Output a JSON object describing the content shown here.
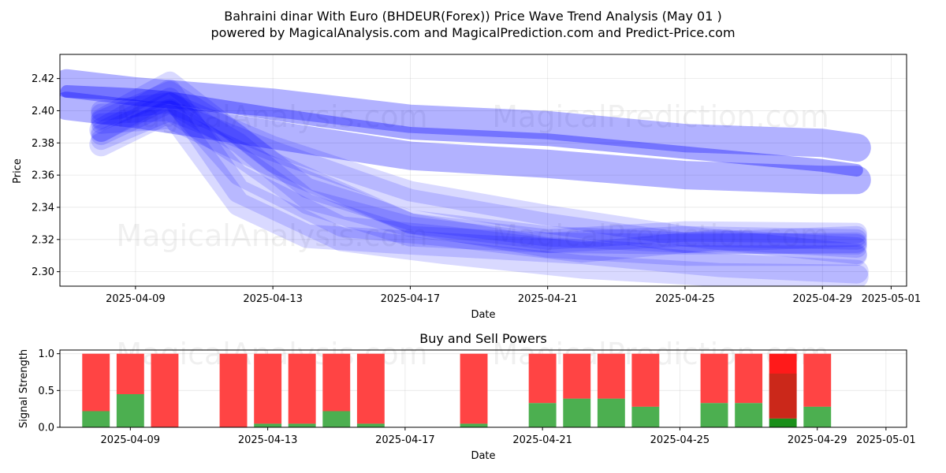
{
  "title_line1": "Bahraini dinar With Euro (BHDEUR(Forex)) Price Wave Trend Analysis (May 01 )",
  "title_line2": "powered by MagicalAnalysis.com and MagicalPrediction.com and Predict-Price.com",
  "watermarks": [
    "MagicalAnalysis.com",
    "MagicalPrediction.com"
  ],
  "colors": {
    "wave": "#0000ff",
    "buy": "#4caf50",
    "sell": "#ff4444",
    "buy_strong": "#1a8f1a",
    "sell_strong": "#ff1a1a"
  },
  "chart_data": [
    {
      "type": "area",
      "xlabel": "Date",
      "ylabel": "Price",
      "xlim": [
        "2025-04-07",
        "2025-05-01"
      ],
      "ylim": [
        2.291,
        2.435
      ],
      "y_ticks": [
        2.3,
        2.32,
        2.34,
        2.36,
        2.38,
        2.4,
        2.42
      ],
      "x_ticks": [
        "2025-04-09",
        "2025-04-13",
        "2025-04-17",
        "2025-04-21",
        "2025-04-25",
        "2025-04-29",
        "2025-05-01"
      ],
      "grid": true,
      "series": [
        {
          "x": [
            "2025-04-07",
            "2025-04-09",
            "2025-04-13",
            "2025-04-17",
            "2025-04-21",
            "2025-04-25",
            "2025-04-29",
            "2025-04-30"
          ],
          "values": [
            2.417,
            2.412,
            2.405,
            2.395,
            2.391,
            2.383,
            2.38,
            2.377
          ],
          "opacity": 0.3,
          "width": 36
        },
        {
          "x": [
            "2025-04-07",
            "2025-04-09",
            "2025-04-13",
            "2025-04-17",
            "2025-04-21",
            "2025-04-25",
            "2025-04-29",
            "2025-04-30"
          ],
          "values": [
            2.403,
            2.398,
            2.385,
            2.372,
            2.367,
            2.36,
            2.357,
            2.357
          ],
          "opacity": 0.3,
          "width": 36
        },
        {
          "x": [
            "2025-04-07",
            "2025-04-09",
            "2025-04-10",
            "2025-04-13",
            "2025-04-17",
            "2025-04-21",
            "2025-04-25",
            "2025-04-29",
            "2025-04-30"
          ],
          "values": [
            2.412,
            2.41,
            2.408,
            2.398,
            2.386,
            2.382,
            2.374,
            2.366,
            2.363
          ],
          "opacity": 0.35,
          "width": 16
        },
        {
          "x": [
            "2025-04-08",
            "2025-04-10",
            "2025-04-12",
            "2025-04-14",
            "2025-04-17",
            "2025-04-21",
            "2025-04-25",
            "2025-04-30"
          ],
          "values": [
            2.385,
            2.405,
            2.38,
            2.345,
            2.328,
            2.318,
            2.317,
            2.318
          ],
          "opacity": 0.15,
          "width": 26
        },
        {
          "x": [
            "2025-04-08",
            "2025-04-10",
            "2025-04-12",
            "2025-04-14",
            "2025-04-17",
            "2025-04-21",
            "2025-04-25",
            "2025-04-30"
          ],
          "values": [
            2.398,
            2.4,
            2.372,
            2.342,
            2.322,
            2.318,
            2.322,
            2.32
          ],
          "opacity": 0.15,
          "width": 26
        },
        {
          "x": [
            "2025-04-08",
            "2025-04-10",
            "2025-04-12",
            "2025-04-14",
            "2025-04-17",
            "2025-04-21",
            "2025-04-25",
            "2025-04-30"
          ],
          "values": [
            2.394,
            2.412,
            2.385,
            2.352,
            2.332,
            2.322,
            2.318,
            2.317
          ],
          "opacity": 0.15,
          "width": 26
        },
        {
          "x": [
            "2025-04-08",
            "2025-04-10",
            "2025-04-12",
            "2025-04-15",
            "2025-04-18",
            "2025-04-22",
            "2025-04-26",
            "2025-04-30"
          ],
          "values": [
            2.387,
            2.408,
            2.36,
            2.328,
            2.322,
            2.312,
            2.32,
            2.315
          ],
          "opacity": 0.15,
          "width": 26
        },
        {
          "x": [
            "2025-04-08",
            "2025-04-10",
            "2025-04-13",
            "2025-04-17",
            "2025-04-21",
            "2025-04-25",
            "2025-04-30"
          ],
          "values": [
            2.382,
            2.4,
            2.375,
            2.345,
            2.33,
            2.318,
            2.322
          ],
          "opacity": 0.15,
          "width": 26
        },
        {
          "x": [
            "2025-04-08",
            "2025-04-10",
            "2025-04-13",
            "2025-04-17",
            "2025-04-21",
            "2025-04-25",
            "2025-04-30"
          ],
          "values": [
            2.392,
            2.395,
            2.365,
            2.33,
            2.32,
            2.325,
            2.324
          ],
          "opacity": 0.15,
          "width": 26
        },
        {
          "x": [
            "2025-04-08",
            "2025-04-10",
            "2025-04-12",
            "2025-04-14",
            "2025-04-17",
            "2025-04-22",
            "2025-04-26",
            "2025-04-30"
          ],
          "values": [
            2.379,
            2.4,
            2.342,
            2.322,
            2.318,
            2.312,
            2.304,
            2.3
          ],
          "opacity": 0.15,
          "width": 30
        },
        {
          "x": [
            "2025-04-08",
            "2025-04-10",
            "2025-04-12",
            "2025-04-15",
            "2025-04-18",
            "2025-04-22",
            "2025-04-26",
            "2025-04-30"
          ],
          "values": [
            2.388,
            2.412,
            2.35,
            2.32,
            2.312,
            2.303,
            2.298,
            2.297
          ],
          "opacity": 0.15,
          "width": 30
        },
        {
          "x": [
            "2025-04-08",
            "2025-04-10",
            "2025-04-13",
            "2025-04-17",
            "2025-04-21",
            "2025-04-25",
            "2025-04-30"
          ],
          "values": [
            2.395,
            2.418,
            2.368,
            2.33,
            2.315,
            2.31,
            2.31
          ],
          "opacity": 0.15,
          "width": 26
        },
        {
          "x": [
            "2025-04-08",
            "2025-04-10",
            "2025-04-13",
            "2025-04-17",
            "2025-04-21",
            "2025-04-25",
            "2025-04-30"
          ],
          "values": [
            2.4,
            2.405,
            2.378,
            2.35,
            2.335,
            2.322,
            2.311
          ],
          "opacity": 0.15,
          "width": 26
        }
      ]
    },
    {
      "type": "bar",
      "title": "Buy and Sell Powers",
      "xlabel": "Date",
      "ylabel": "Signal Strength",
      "xlim": [
        "2025-04-07",
        "2025-05-01"
      ],
      "ylim": [
        0,
        1.05
      ],
      "y_ticks": [
        0.0,
        0.5,
        1.0
      ],
      "x_ticks": [
        "2025-04-09",
        "2025-04-13",
        "2025-04-17",
        "2025-04-21",
        "2025-04-25",
        "2025-04-29",
        "2025-05-01"
      ],
      "grid": true,
      "bars": [
        {
          "date": "2025-04-08",
          "buy": 0.22,
          "sell": 0.78
        },
        {
          "date": "2025-04-09",
          "buy": 0.45,
          "sell": 0.55
        },
        {
          "date": "2025-04-10",
          "buy": 0.0,
          "sell": 1.0
        },
        {
          "date": "2025-04-12",
          "buy": 0.0,
          "sell": 1.0
        },
        {
          "date": "2025-04-13",
          "buy": 0.05,
          "sell": 0.95
        },
        {
          "date": "2025-04-14",
          "buy": 0.05,
          "sell": 0.95
        },
        {
          "date": "2025-04-15",
          "buy": 0.22,
          "sell": 0.78
        },
        {
          "date": "2025-04-16",
          "buy": 0.05,
          "sell": 0.95
        },
        {
          "date": "2025-04-19",
          "buy": 0.05,
          "sell": 0.95
        },
        {
          "date": "2025-04-21",
          "buy": 0.33,
          "sell": 0.67
        },
        {
          "date": "2025-04-22",
          "buy": 0.39,
          "sell": 0.61
        },
        {
          "date": "2025-04-23",
          "buy": 0.39,
          "sell": 0.61
        },
        {
          "date": "2025-04-24",
          "buy": 0.28,
          "sell": 0.72
        },
        {
          "date": "2025-04-26",
          "buy": 0.33,
          "sell": 0.67
        },
        {
          "date": "2025-04-27",
          "buy": 0.33,
          "sell": 0.67
        },
        {
          "date": "2025-04-28",
          "buy": 0.12,
          "sell": 0.88,
          "overlay_buy": 0.73
        },
        {
          "date": "2025-04-29",
          "buy": 0.28,
          "sell": 0.72
        }
      ]
    }
  ]
}
